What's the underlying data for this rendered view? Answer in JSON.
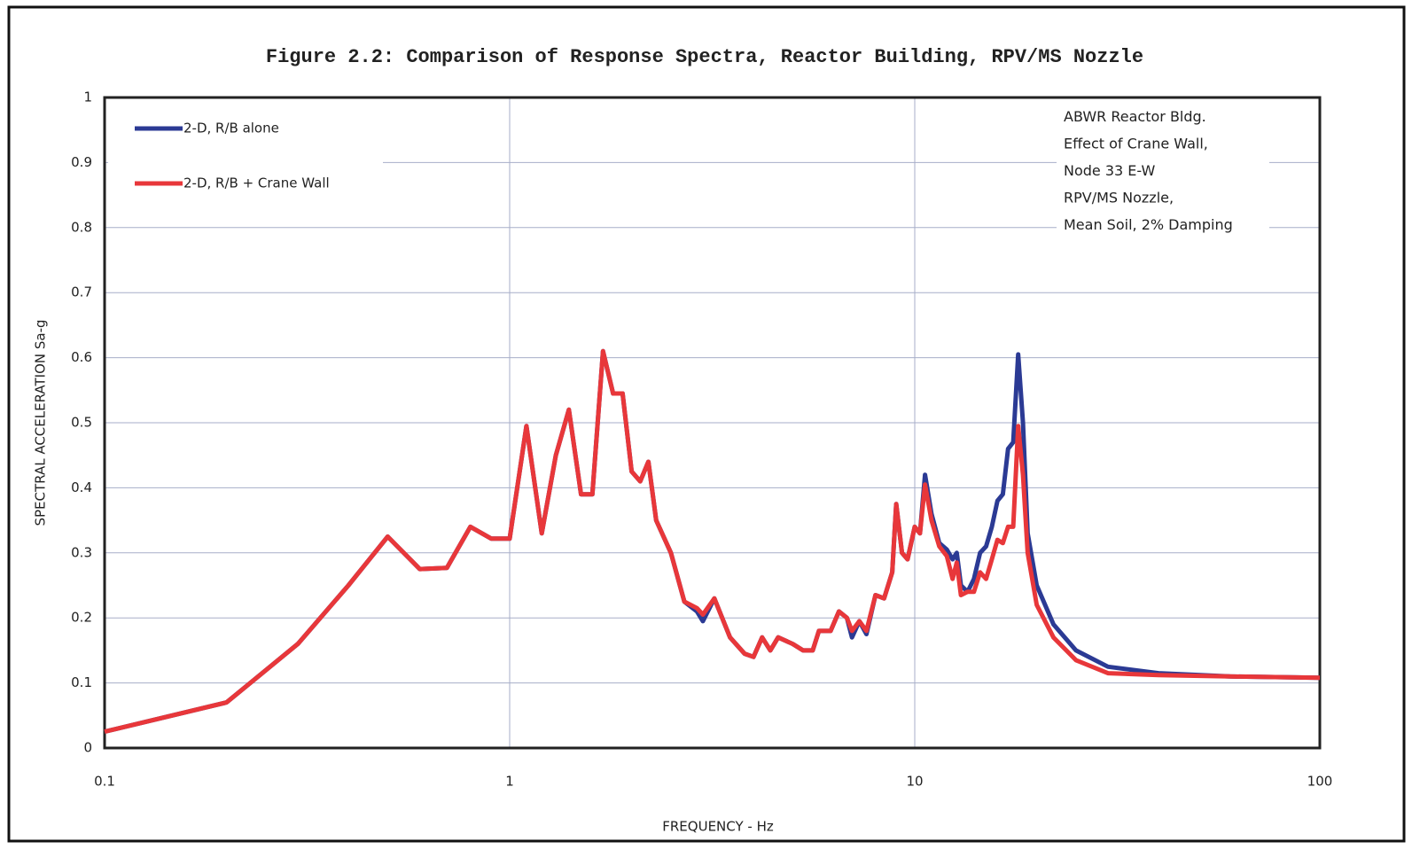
{
  "chart_data": {
    "type": "line",
    "title": "Figure 2.2: Comparison of Response Spectra, Reactor Building, RPV/MS Nozzle",
    "xlabel": "FREQUENCY - Hz",
    "ylabel": "SPECTRAL ACCELERATION Sa-g",
    "annotation": [
      "ABWR Reactor Bldg.",
      "Effect of Crane Wall,",
      "Node 33 E-W",
      "RPV/MS Nozzle,",
      "Mean Soil, 2% Damping"
    ],
    "xscale": "log",
    "grid": true,
    "legend": "upper left",
    "xlim": [
      0.1,
      100
    ],
    "ylim": [
      0,
      1
    ],
    "xticks": [
      0.1,
      1,
      10,
      100
    ],
    "yticks": [
      0,
      0.1,
      0.2,
      0.3,
      0.4,
      0.5,
      0.6,
      0.7,
      0.8,
      0.9,
      1
    ],
    "x": [
      0.1,
      0.2,
      0.3,
      0.4,
      0.5,
      0.6,
      0.7,
      0.8,
      0.9,
      1.0,
      1.1,
      1.2,
      1.3,
      1.4,
      1.5,
      1.6,
      1.7,
      1.8,
      1.9,
      2.0,
      2.1,
      2.2,
      2.3,
      2.5,
      2.7,
      2.9,
      3.0,
      3.2,
      3.5,
      3.8,
      4.0,
      4.2,
      4.4,
      4.6,
      5.0,
      5.3,
      5.6,
      5.8,
      6.2,
      6.5,
      6.8,
      7.0,
      7.3,
      7.6,
      8.0,
      8.4,
      8.8,
      9.0,
      9.3,
      9.6,
      10.0,
      10.3,
      10.6,
      11.0,
      11.5,
      12.0,
      12.4,
      12.7,
      13.0,
      13.5,
      14.0,
      14.5,
      15.0,
      15.5,
      16.0,
      16.5,
      17.0,
      17.5,
      18.0,
      18.5,
      19.0,
      20,
      22,
      25,
      30,
      40,
      60,
      100
    ],
    "series": [
      {
        "name": "2-D, R/B alone",
        "color": "#2b3a94",
        "values": [
          0.025,
          0.07,
          0.16,
          0.25,
          0.325,
          0.275,
          0.277,
          0.34,
          0.322,
          0.322,
          0.495,
          0.33,
          0.45,
          0.52,
          0.39,
          0.39,
          0.61,
          0.545,
          0.545,
          0.425,
          0.41,
          0.44,
          0.35,
          0.3,
          0.225,
          0.21,
          0.195,
          0.23,
          0.17,
          0.145,
          0.14,
          0.17,
          0.15,
          0.17,
          0.16,
          0.15,
          0.15,
          0.18,
          0.18,
          0.21,
          0.2,
          0.17,
          0.195,
          0.175,
          0.235,
          0.23,
          0.27,
          0.375,
          0.3,
          0.29,
          0.34,
          0.33,
          0.42,
          0.36,
          0.315,
          0.305,
          0.29,
          0.3,
          0.25,
          0.24,
          0.26,
          0.3,
          0.31,
          0.34,
          0.38,
          0.39,
          0.46,
          0.47,
          0.605,
          0.5,
          0.33,
          0.25,
          0.19,
          0.15,
          0.125,
          0.115,
          0.11,
          0.108
        ]
      },
      {
        "name": "2-D, R/B + Crane Wall",
        "color": "#e8373a",
        "values": [
          0.025,
          0.07,
          0.16,
          0.25,
          0.325,
          0.275,
          0.277,
          0.34,
          0.322,
          0.322,
          0.495,
          0.33,
          0.45,
          0.52,
          0.39,
          0.39,
          0.61,
          0.545,
          0.545,
          0.425,
          0.41,
          0.44,
          0.35,
          0.3,
          0.225,
          0.215,
          0.205,
          0.23,
          0.17,
          0.145,
          0.14,
          0.17,
          0.15,
          0.17,
          0.16,
          0.15,
          0.15,
          0.18,
          0.18,
          0.21,
          0.2,
          0.18,
          0.195,
          0.18,
          0.235,
          0.23,
          0.27,
          0.375,
          0.3,
          0.29,
          0.34,
          0.33,
          0.405,
          0.35,
          0.31,
          0.295,
          0.26,
          0.285,
          0.235,
          0.24,
          0.24,
          0.27,
          0.26,
          0.29,
          0.32,
          0.315,
          0.34,
          0.34,
          0.495,
          0.42,
          0.3,
          0.22,
          0.17,
          0.135,
          0.115,
          0.112,
          0.11,
          0.108
        ]
      }
    ]
  }
}
